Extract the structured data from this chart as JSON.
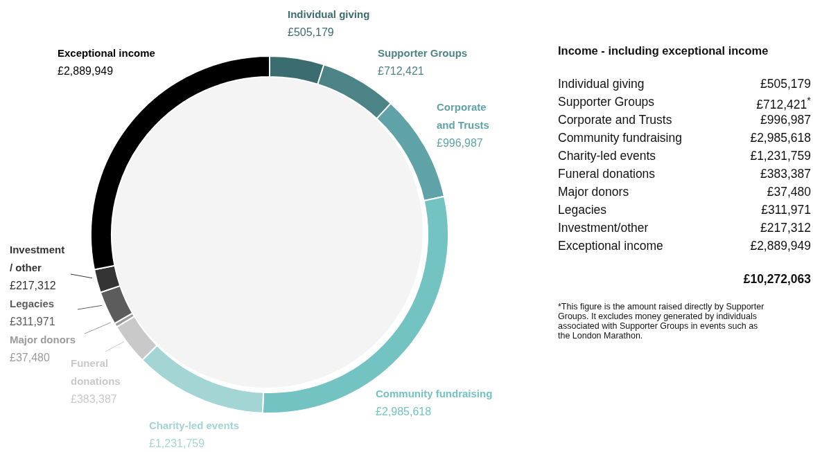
{
  "chart_data": [
    {
      "type": "donut",
      "categories": [
        "Individual giving",
        "Supporter Groups",
        "Corporate and Trusts",
        "Community fundraising",
        "Charity-led events",
        "Funeral donations",
        "Major donors",
        "Legacies",
        "Investment / other",
        "Exceptional income"
      ],
      "values": [
        505179,
        712421,
        996987,
        2985618,
        1231759,
        383387,
        37480,
        311971,
        217312,
        2889949
      ],
      "value_labels": [
        "£505,179",
        "£712,421",
        "£996,987",
        "£2,985,618",
        "£1,231,759",
        "£383,387",
        "£37,480",
        "£311,971",
        "£217,312",
        "£2,889,949"
      ],
      "colors": [
        "#3b6d70",
        "#4c8386",
        "#5fa2a7",
        "#74c3c3",
        "#a3d5d5",
        "#c9c9c9",
        "#9b9b9b",
        "#5c5c5c",
        "#343434",
        "#000000"
      ]
    },
    {
      "type": "other",
      "title": "Income - including exceptional income",
      "categories": [
        "Individual giving",
        "Supporter Groups",
        "Corporate and Trusts",
        "Community fundraising",
        "Charity-led events",
        "Funeral donations",
        "Major donors",
        "Legacies",
        "Investment/other",
        "Exceptional income"
      ],
      "value_labels": [
        "£505,179",
        "£712,421$^{*}$",
        "£996,987",
        "£2,985,618",
        "£1,231,759",
        "£383,387",
        "£37,480",
        "£311,971",
        "£217,312",
        "£2,889,949"
      ],
      "annotations": [
        "£10,272,063",
        "*This figure is the amount raised directly by Supporter Groups. It excludes money generated by individuals associated with Supporter Groups in events such as the London Marathon."
      ]
    }
  ]
}
